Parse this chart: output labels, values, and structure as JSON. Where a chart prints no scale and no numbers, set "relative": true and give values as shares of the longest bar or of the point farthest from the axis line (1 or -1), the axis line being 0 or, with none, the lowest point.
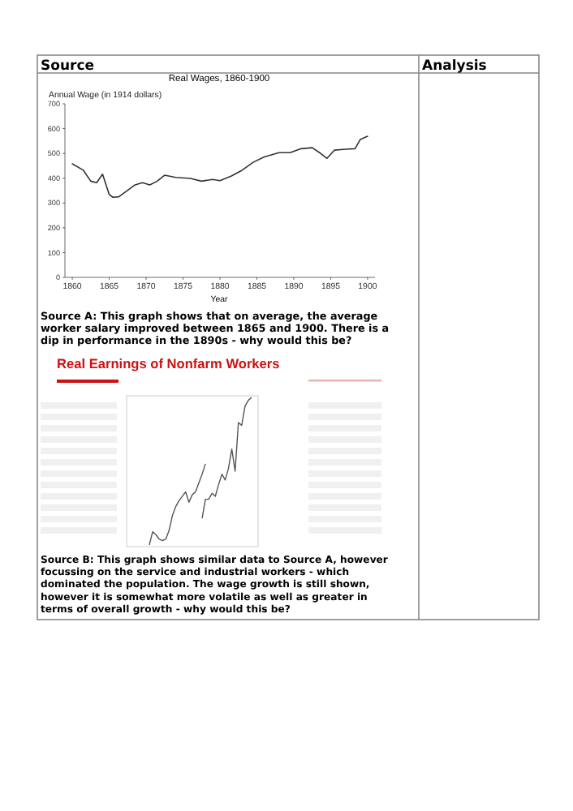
{
  "chart_data": [
    {
      "type": "other",
      "annotations": [
        "Source",
        "Analysis"
      ]
    },
    {
      "type": "line",
      "title": "Real Wages, 1860-1900",
      "xlabel": "Year",
      "ylabel": "Annual Wage (in 1914 dollars)",
      "x": [
        1860,
        1861.5,
        1862.5,
        1863.3,
        1864.1,
        1865,
        1865.5,
        1866.3,
        1867.5,
        1868.5,
        1869.5,
        1870.5,
        1871.5,
        1872.5,
        1874,
        1876,
        1877.5,
        1879,
        1880,
        1881.5,
        1883,
        1884.5,
        1886,
        1888,
        1889.5,
        1891,
        1892.5,
        1893.5,
        1894.5,
        1895.5,
        1897,
        1898.3,
        1899,
        1900
      ],
      "values": [
        458,
        432,
        388,
        382,
        416,
        334,
        323,
        325,
        351,
        373,
        382,
        373,
        388,
        412,
        403,
        399,
        388,
        395,
        390,
        408,
        432,
        464,
        486,
        503,
        503,
        519,
        523,
        503,
        480,
        513,
        517,
        519,
        556,
        569
      ],
      "color": "#333333",
      "xlim": [
        1859,
        1901
      ],
      "xticks": [
        1860,
        1865,
        1870,
        1875,
        1880,
        1885,
        1890,
        1895,
        1900
      ],
      "ylim": [
        0,
        700
      ],
      "yticks": [
        0,
        100,
        200,
        300,
        400,
        500,
        600,
        700
      ],
      "grid": false,
      "annotations": [
        "Source A: This graph shows that on average, the average worker salary improved between 1865 and 1900. There is a dip in performance in the 1890s - why would this be?"
      ]
    },
    {
      "type": "line",
      "title": "Real Earnings of Nonfarm Workers",
      "relative": true,
      "grid": false,
      "categories": [
        null,
        null,
        null,
        null,
        null,
        null,
        null,
        null,
        null,
        null,
        null,
        null,
        null,
        null,
        null,
        null,
        null,
        null,
        null,
        null,
        null,
        null,
        null,
        null,
        null,
        null,
        null,
        null,
        null,
        null,
        null,
        null
      ],
      "series": [
        {
          "color": "#555555",
          "values": [
            0,
            0.09,
            0.07,
            0.04,
            0.03,
            0.04,
            0.1,
            0.2,
            0.26,
            0.3,
            0.33,
            0.36,
            0.29,
            0.34,
            0.36,
            0.42,
            0.48,
            0.55,
            null,
            null,
            null,
            null,
            null,
            null,
            null,
            null,
            null,
            null,
            null,
            null,
            null,
            null
          ]
        },
        {
          "color": "#555555",
          "values": [
            null,
            null,
            null,
            null,
            null,
            null,
            null,
            null,
            null,
            null,
            null,
            null,
            null,
            null,
            null,
            null,
            0.18,
            0.31,
            0.31,
            0.35,
            0.33,
            0.41,
            0.48,
            0.44,
            0.52,
            0.65,
            0.5,
            0.83,
            0.81,
            0.94,
            0.98,
            1
          ]
        }
      ],
      "annotations": [
        "Source B: This graph shows similar data to Source A, however focussing on the service and industrial workers - which dominated the population. The wage growth is still shown, however it is somewhat more volatile as well as greater in terms of overall growth - why would this be?"
      ]
    }
  ]
}
